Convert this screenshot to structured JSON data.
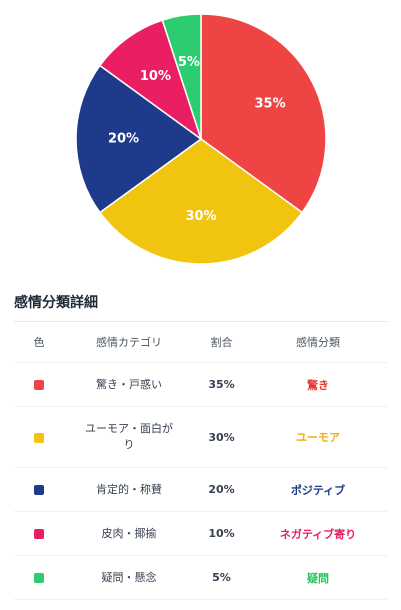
{
  "chart_data": {
    "type": "pie",
    "slices": [
      {
        "category": "驚き・戸惑い",
        "value": 35,
        "label": "35%",
        "color": "#ef4444"
      },
      {
        "category": "ユーモア・面白がり",
        "value": 30,
        "label": "30%",
        "color": "#f1c40f"
      },
      {
        "category": "肯定的・称賛",
        "value": 20,
        "label": "20%",
        "color": "#1e3a8a"
      },
      {
        "category": "皮肉・揶揄",
        "value": 10,
        "label": "10%",
        "color": "#e91e63"
      },
      {
        "category": "疑問・懸念",
        "value": 5,
        "label": "5%",
        "color": "#2ecc71"
      }
    ]
  },
  "detail": {
    "title": "感情分類詳細",
    "headers": {
      "color": "色",
      "category": "感情カテゴリ",
      "ratio": "割合",
      "classification": "感情分類"
    },
    "rows": [
      {
        "color": "#ef4444",
        "category": "驚き・戸惑い",
        "ratio": "35%",
        "classification": "驚き",
        "class_color": "#e53935"
      },
      {
        "color": "#f1c40f",
        "category": "ユーモア・面白がり",
        "ratio": "30%",
        "classification": "ユーモア",
        "class_color": "#eab308"
      },
      {
        "color": "#1e3a8a",
        "category": "肯定的・称賛",
        "ratio": "20%",
        "classification": "ポジティブ",
        "class_color": "#1e3a8a"
      },
      {
        "color": "#e91e63",
        "category": "皮肉・揶揄",
        "ratio": "10%",
        "classification": "ネガティブ寄り",
        "class_color": "#e91e63"
      },
      {
        "color": "#2ecc71",
        "category": "疑問・懸念",
        "ratio": "5%",
        "classification": "疑問",
        "class_color": "#22c55e"
      }
    ]
  }
}
